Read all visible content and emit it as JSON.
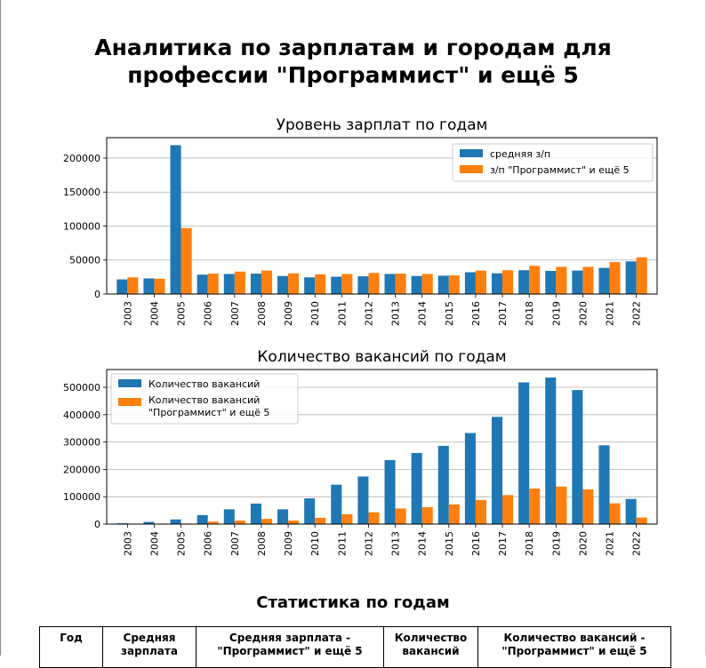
{
  "report": {
    "title_line1": "Аналитика по зарплатам и городам для",
    "title_line2": "профессии \"Программист\" и ещё 5"
  },
  "chart_data": [
    {
      "type": "bar",
      "title": "Уровень зарплат по годам",
      "categories": [
        "2003",
        "2004",
        "2005",
        "2006",
        "2007",
        "2008",
        "2009",
        "2010",
        "2011",
        "2012",
        "2013",
        "2014",
        "2015",
        "2016",
        "2017",
        "2018",
        "2019",
        "2020",
        "2021",
        "2022"
      ],
      "series": [
        {
          "name": "средняя з/п",
          "color": "#1f77b4",
          "values": [
            21500,
            23000,
            219000,
            28500,
            29500,
            30000,
            26500,
            24500,
            25500,
            26000,
            29500,
            26500,
            27000,
            32000,
            30500,
            35000,
            34000,
            34500,
            38500,
            48000
          ]
        },
        {
          "name": "з/п \"Программист\" и ещё 5",
          "color": "#ff7f0e",
          "values": [
            24500,
            22500,
            97000,
            30000,
            33000,
            34500,
            30500,
            29000,
            29500,
            31000,
            30000,
            29500,
            27500,
            34500,
            35000,
            41500,
            40000,
            40000,
            47000,
            54000
          ]
        }
      ],
      "ylim": [
        0,
        230000
      ],
      "yticks": [
        0,
        50000,
        100000,
        150000,
        200000
      ],
      "grid": "y",
      "legend": "top-right"
    },
    {
      "type": "bar",
      "title": "Количество вакансий по годам",
      "categories": [
        "2003",
        "2004",
        "2005",
        "2006",
        "2007",
        "2008",
        "2009",
        "2010",
        "2011",
        "2012",
        "2013",
        "2014",
        "2015",
        "2016",
        "2017",
        "2018",
        "2019",
        "2020",
        "2021",
        "2022"
      ],
      "series": [
        {
          "name": "Количество вакансий",
          "color": "#1f77b4",
          "values": [
            3000,
            8000,
            17000,
            33000,
            54000,
            75000,
            54000,
            94000,
            144000,
            174000,
            234000,
            260000,
            286000,
            333000,
            392000,
            518000,
            536000,
            490000,
            288000,
            92000
          ]
        },
        {
          "name": "Количество вакансий \"Программист\" и ещё 5",
          "color": "#ff7f0e",
          "values": [
            500,
            1000,
            2000,
            9000,
            13000,
            19000,
            13000,
            23000,
            36000,
            43000,
            57000,
            62000,
            72000,
            88000,
            106000,
            130000,
            137000,
            127000,
            76000,
            24000
          ]
        }
      ],
      "ylim": [
        0,
        565000
      ],
      "yticks": [
        0,
        100000,
        200000,
        300000,
        400000,
        500000
      ],
      "grid": "y",
      "legend": "top-left"
    }
  ],
  "stats": {
    "title": "Статистика по годам",
    "columns": [
      {
        "line1": "Год",
        "line2": ""
      },
      {
        "line1": "Средняя",
        "line2": "зарплата"
      },
      {
        "line1": "Средняя зарплата -",
        "line2": "\"Программист\" и ещё 5"
      },
      {
        "line1": "Количество",
        "line2": "вакансий"
      },
      {
        "line1": "Количество вакансий -",
        "line2": "\"Программист\" и ещё 5"
      }
    ]
  }
}
